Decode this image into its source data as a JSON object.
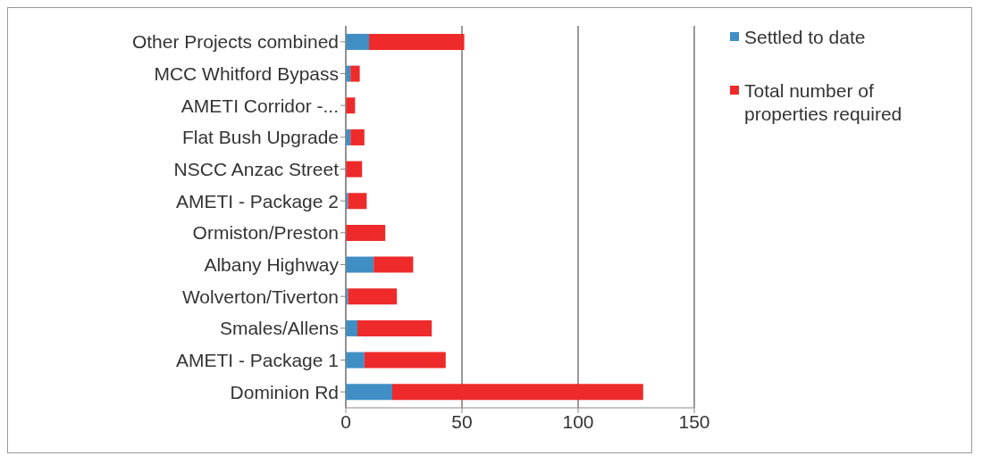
{
  "chart_data": {
    "type": "bar",
    "orientation": "horizontal",
    "stacked": true,
    "categories": [
      "Other Projects combined",
      "MCC Whitford Bypass",
      "AMETI Corridor -...",
      "Flat Bush Upgrade",
      "NSCC Anzac Street",
      "AMETI - Package 2",
      "Ormiston/Preston",
      "Albany Highway",
      "Wolverton/Tiverton",
      "Smales/Allens",
      "AMETI - Package 1",
      "Dominion Rd"
    ],
    "series": [
      {
        "name": "Settled to date",
        "color": "#3f8fc4",
        "values": [
          10,
          2,
          0,
          2,
          0,
          1,
          0,
          12,
          1,
          5,
          8,
          20
        ]
      },
      {
        "name": "Total number of properties required",
        "color": "#ee2a2a",
        "values": [
          41,
          4,
          4,
          6,
          7,
          8,
          17,
          17,
          21,
          32,
          35,
          108
        ]
      }
    ],
    "xlim": [
      0,
      150
    ],
    "xticks": [
      0,
      50,
      100,
      150
    ],
    "grid": "x",
    "legend": "top right"
  }
}
